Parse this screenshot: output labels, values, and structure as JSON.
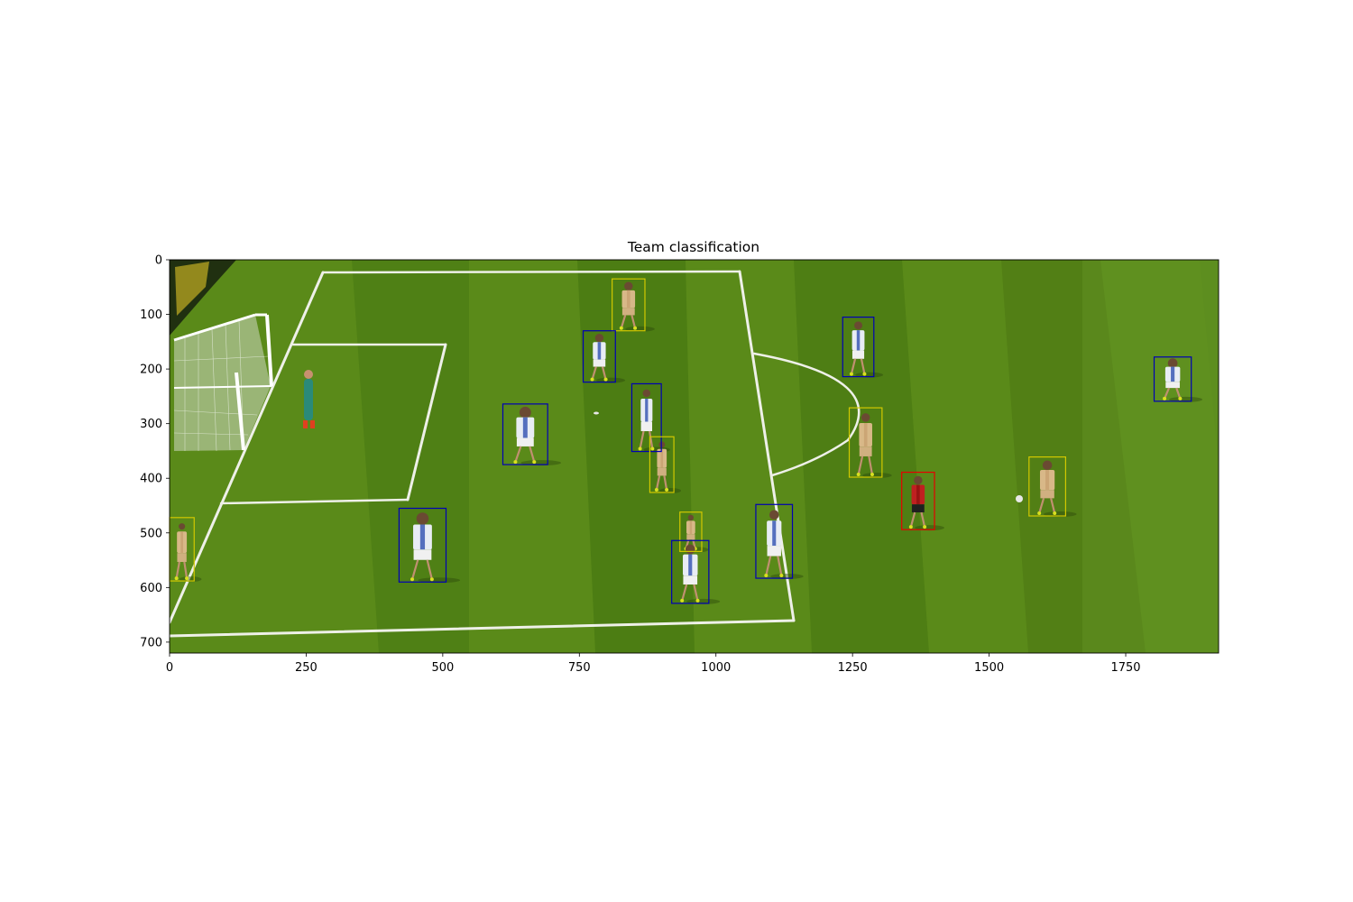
{
  "chart_data": {
    "type": "image-with-bounding-boxes",
    "title": "Team classification",
    "xlim": [
      0,
      1920
    ],
    "ylim": [
      720,
      0
    ],
    "x_ticks": [
      0,
      250,
      500,
      750,
      1000,
      1250,
      1500,
      1750
    ],
    "y_ticks": [
      0,
      100,
      200,
      300,
      400,
      500,
      600,
      700
    ],
    "grid": false,
    "legend": "none",
    "colors": {
      "team_a": "#0000b4",
      "team_b": "#d2c800",
      "referee": "#e60000",
      "pitch_dark": "#4f7f14",
      "pitch_light": "#62941e",
      "line": "#eef0e8"
    },
    "boxes": [
      {
        "team": "team_b",
        "x1": 810,
        "y1": 35,
        "x2": 870,
        "y2": 130
      },
      {
        "team": "team_a",
        "x1": 757,
        "y1": 130,
        "x2": 816,
        "y2": 224
      },
      {
        "team": "team_a",
        "x1": 1232,
        "y1": 105,
        "x2": 1289,
        "y2": 214
      },
      {
        "team": "team_a",
        "x1": 1802,
        "y1": 178,
        "x2": 1870,
        "y2": 259
      },
      {
        "team": "team_a",
        "x1": 846,
        "y1": 227,
        "x2": 900,
        "y2": 351
      },
      {
        "team": "team_a",
        "x1": 610,
        "y1": 264,
        "x2": 692,
        "y2": 375
      },
      {
        "team": "team_b",
        "x1": 1244,
        "y1": 271,
        "x2": 1304,
        "y2": 398
      },
      {
        "team": "team_b",
        "x1": 879,
        "y1": 324,
        "x2": 923,
        "y2": 426
      },
      {
        "team": "team_b",
        "x1": 1573,
        "y1": 361,
        "x2": 1640,
        "y2": 469
      },
      {
        "team": "referee",
        "x1": 1340,
        "y1": 389,
        "x2": 1400,
        "y2": 494
      },
      {
        "team": "team_a",
        "x1": 1073,
        "y1": 448,
        "x2": 1140,
        "y2": 583
      },
      {
        "team": "team_a",
        "x1": 420,
        "y1": 455,
        "x2": 506,
        "y2": 590
      },
      {
        "team": "team_b",
        "x1": 0,
        "y1": 472,
        "x2": 45,
        "y2": 588
      },
      {
        "team": "team_b",
        "x1": 934,
        "y1": 462,
        "x2": 974,
        "y2": 534
      },
      {
        "team": "team_a",
        "x1": 919,
        "y1": 514,
        "x2": 987,
        "y2": 629
      }
    ]
  }
}
